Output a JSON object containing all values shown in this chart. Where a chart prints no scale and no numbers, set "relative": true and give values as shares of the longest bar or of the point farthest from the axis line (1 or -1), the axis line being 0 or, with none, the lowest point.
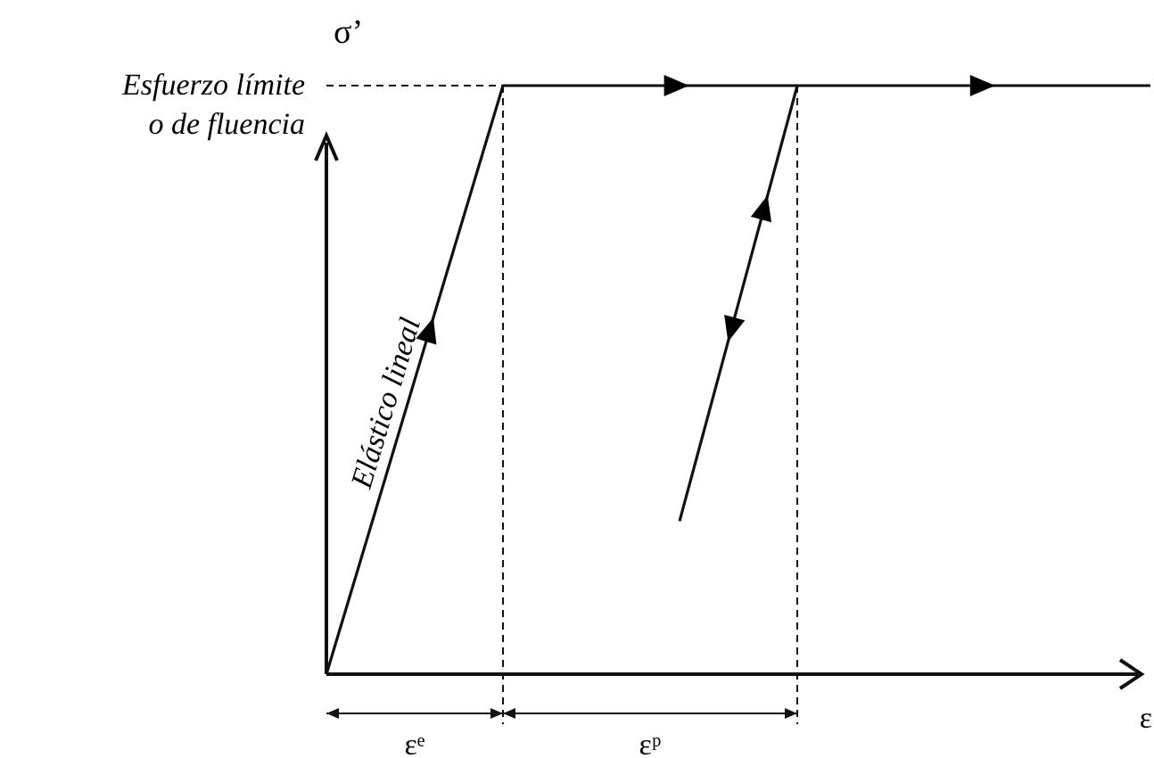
{
  "chart_data": {
    "type": "line",
    "relative": true,
    "xlabel": "ε",
    "ylabel": "σ’",
    "tick_labels": false,
    "grid": false,
    "marker": "none",
    "line_style": "solid",
    "categories": [
      null,
      null,
      null,
      null,
      null,
      null,
      null,
      null,
      null,
      null,
      null,
      null,
      null,
      null,
      null
    ],
    "series": [
      {
        "color": "#111111",
        "values": [
          0,
          0.333,
          0.667,
          1,
          1,
          1,
          1,
          1,
          1,
          1,
          1,
          1,
          1,
          1,
          1
        ]
      },
      {
        "color": "#111111",
        "values": [
          null,
          null,
          null,
          null,
          null,
          null,
          0.26,
          0.63,
          1,
          null,
          null,
          null,
          null,
          null,
          null
        ]
      }
    ],
    "ref_lines": [
      {
        "axis": "y",
        "value": 1,
        "label": "Esfuerzo límite\no de fluencia",
        "color": "#111111",
        "line_style": "dashed"
      }
    ],
    "annotations": [
      "Elástico lineal",
      "εᵉ",
      "εᵖ"
    ]
  }
}
